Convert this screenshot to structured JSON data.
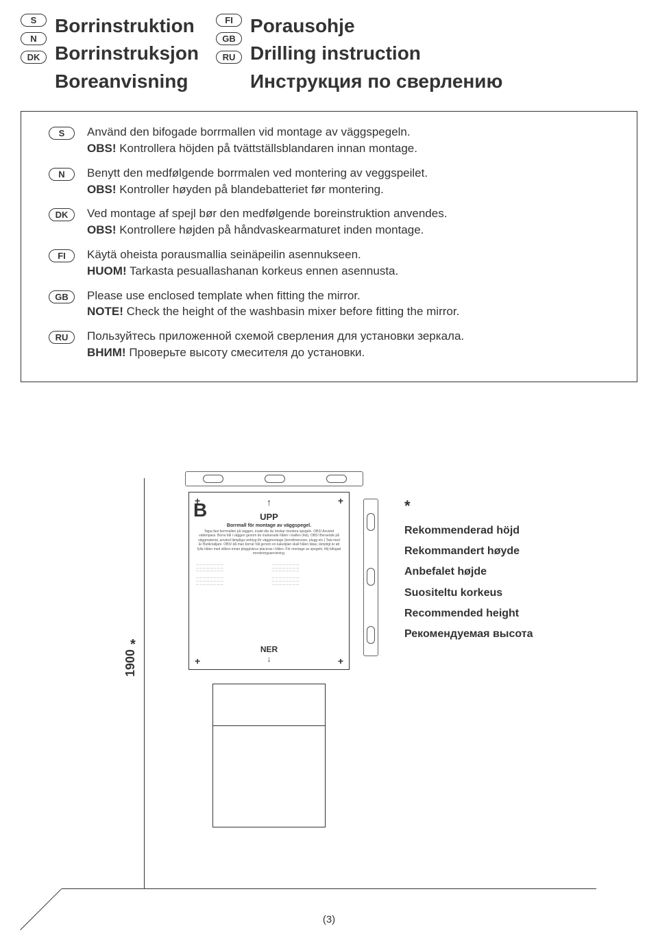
{
  "header": {
    "left": {
      "langs": [
        "S",
        "N",
        "DK"
      ],
      "titles": [
        "Borrinstruktion",
        "Borrinstruksjon",
        "Boreanvisning"
      ]
    },
    "right": {
      "langs": [
        "FI",
        "GB",
        "RU"
      ],
      "titles": [
        "Porausohje",
        "Drilling instruction",
        "Инструкция по сверлению"
      ]
    }
  },
  "instructions": [
    {
      "lang": "S",
      "line1": "Använd den bifogade borrmallen vid montage av väggspegeln.",
      "bold": "OBS!",
      "line2": " Kontrollera höjden på tvättställsblandaren innan montage."
    },
    {
      "lang": "N",
      "line1": "Benytt den medfølgende borrmalen ved montering av veggspeilet.",
      "bold": "OBS!",
      "line2": " Kontroller høyden på blandebatteriet før montering."
    },
    {
      "lang": "DK",
      "line1": "Ved montage af spejl bør den medfølgende boreinstruktion anvendes.",
      "bold": "OBS!",
      "line2": " Kontrollere højden på håndvaskearmaturet inden montage."
    },
    {
      "lang": "FI",
      "line1": "Käytä oheista porausmallia seinäpeilin asennukseen.",
      "bold": "HUOM!",
      "line2": " Tarkasta pesuallashanan korkeus ennen asennusta."
    },
    {
      "lang": "GB",
      "line1": "Please use enclosed template when fitting the mirror.",
      "bold": "NOTE!",
      "line2": " Check the height of the washbasin mixer before fitting the mirror."
    },
    {
      "lang": "RU",
      "line1": "Пользуйтесь приложенной схемой сверления для установки зеркала.",
      "bold": "ВНИМ!",
      "line2": " Проверьте высоту смесителя до установки."
    }
  ],
  "diagram": {
    "height_value": "1900",
    "star": "*",
    "template": {
      "letter": "B",
      "upp": "UPP",
      "ner": "NER",
      "title": "Borrmall för montage av väggspegel.",
      "body": "Tejpa fast borrmallen på väggen, exakt där du önskar montera spegeln. OBS! Använd vattenpass. Borra hål i väggen genom de markerade hålen i mallen (4st). OBS! Beroende på väggmaterial, använd lämpliga verktyg för väggmontage (borrdimension, plugg etc.) Tala med Er Butik/säljare. OBS! då man borrar hål genom en kakelplan skall hålen tätas, lämpligt är att fylla hålen med silikon innan plugg/skruv placeras i hålen. För montage av spegeln, följ bifogad monteringsanvisning."
    },
    "labels": [
      "Rekommenderad höjd",
      "Rekommandert høyde",
      "Anbefalet højde",
      "Suositeltu korkeus",
      "Recommended height",
      "Рекомендуемая высота"
    ]
  },
  "page": "(3)"
}
